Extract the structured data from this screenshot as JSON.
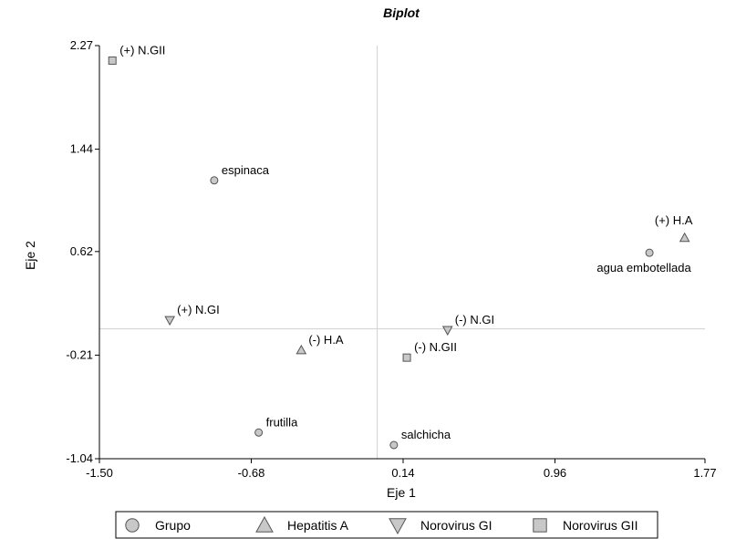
{
  "chart_data": {
    "type": "scatter",
    "title": "Biplot",
    "xlabel": "Eje 1",
    "ylabel": "Eje 2",
    "xlim": [
      -1.5,
      1.77
    ],
    "ylim": [
      -1.04,
      2.27
    ],
    "xticks": [
      "-1.50",
      "-0.68",
      "0.14",
      "0.96",
      "1.77"
    ],
    "yticks": [
      "-1.04",
      "-0.21",
      "0.62",
      "1.44",
      "2.27"
    ],
    "reference_lines": {
      "x": 0.0,
      "y": 0.0
    },
    "grid": false,
    "legend_position": "bottom",
    "points": [
      {
        "label": "(+) N.GII",
        "x": -1.43,
        "y": 2.15,
        "group": "Norovirus GII",
        "label_pos": "right-up"
      },
      {
        "label": "espinaca",
        "x": -0.88,
        "y": 1.19,
        "group": "Grupo",
        "label_pos": "right-up"
      },
      {
        "label": "(+) H.A",
        "x": 1.66,
        "y": 0.73,
        "group": "Hepatitis A",
        "label_pos": "above"
      },
      {
        "label": "agua embotellada",
        "x": 1.47,
        "y": 0.61,
        "group": "Grupo",
        "label_pos": "below"
      },
      {
        "label": "(+) N.GI",
        "x": -1.12,
        "y": 0.07,
        "group": "Norovirus GI",
        "label_pos": "right-up"
      },
      {
        "label": "(-) N.GI",
        "x": 0.38,
        "y": -0.01,
        "group": "Norovirus GI",
        "label_pos": "right-up"
      },
      {
        "label": "(-) H.A",
        "x": -0.41,
        "y": -0.17,
        "group": "Hepatitis A",
        "label_pos": "right-up"
      },
      {
        "label": "(-) N.GII",
        "x": 0.16,
        "y": -0.23,
        "group": "Norovirus GII",
        "label_pos": "right-up"
      },
      {
        "label": "frutilla",
        "x": -0.64,
        "y": -0.83,
        "group": "Grupo",
        "label_pos": "right-up"
      },
      {
        "label": "salchicha",
        "x": 0.09,
        "y": -0.93,
        "group": "Grupo",
        "label_pos": "right-up"
      }
    ],
    "legend": [
      {
        "name": "Grupo",
        "shape": "circle"
      },
      {
        "name": "Hepatitis A",
        "shape": "triangle-up"
      },
      {
        "name": "Norovirus GI",
        "shape": "triangle-down"
      },
      {
        "name": "Norovirus GII",
        "shape": "square"
      }
    ],
    "colors": {
      "marker_fill": "#c8c8c8",
      "marker_stroke": "#555555",
      "axis": "#000000",
      "refline": "#d0d0d0"
    }
  }
}
